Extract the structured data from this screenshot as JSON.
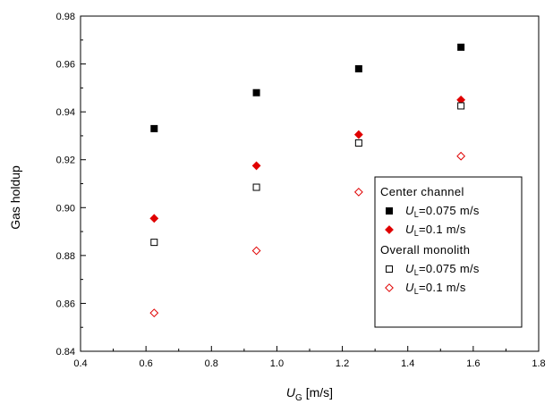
{
  "chart_data": {
    "type": "scatter",
    "xlabel": "U",
    "xlabel_sub": "G",
    "xlabel_unit": " [m/s]",
    "ylabel": "Gas holdup",
    "xlim": [
      0.4,
      1.8
    ],
    "ylim": [
      0.84,
      0.98
    ],
    "xticks": [
      "0.4",
      "0.6",
      "0.8",
      "1.0",
      "1.2",
      "1.4",
      "1.6",
      "1.8"
    ],
    "yticks": [
      "0.84",
      "0.86",
      "0.88",
      "0.90",
      "0.92",
      "0.94",
      "0.96",
      "0.98"
    ],
    "grid": false,
    "legend_position": "bottom-right",
    "legend_groups": [
      {
        "title": "Center channel",
        "series": [
          0,
          1
        ]
      },
      {
        "title": "Overall monolith",
        "series": [
          2,
          3
        ]
      }
    ],
    "series": [
      {
        "name_main": "U",
        "name_sub": "L",
        "name_rest": "=0.075 m/s",
        "marker": "square",
        "filled": true,
        "color": "#000000",
        "x": [
          0.625,
          0.9375,
          1.25,
          1.5625
        ],
        "y": [
          0.933,
          0.948,
          0.958,
          0.967
        ]
      },
      {
        "name_main": "U",
        "name_sub": "L",
        "name_rest": "=0.1 m/s",
        "marker": "diamond",
        "filled": true,
        "color": "#e00000",
        "x": [
          0.625,
          0.9375,
          1.25,
          1.5625
        ],
        "y": [
          0.8955,
          0.9175,
          0.9305,
          0.945
        ]
      },
      {
        "name_main": "U",
        "name_sub": "L",
        "name_rest": "=0.075 m/s",
        "marker": "square",
        "filled": false,
        "color": "#000000",
        "x": [
          0.625,
          0.9375,
          1.25,
          1.5625
        ],
        "y": [
          0.8855,
          0.9085,
          0.927,
          0.9425
        ]
      },
      {
        "name_main": "U",
        "name_sub": "L",
        "name_rest": "=0.1 m/s",
        "marker": "diamond",
        "filled": false,
        "color": "#e00000",
        "x": [
          0.625,
          0.9375,
          1.25,
          1.5625
        ],
        "y": [
          0.856,
          0.882,
          0.9065,
          0.9215
        ]
      }
    ]
  }
}
